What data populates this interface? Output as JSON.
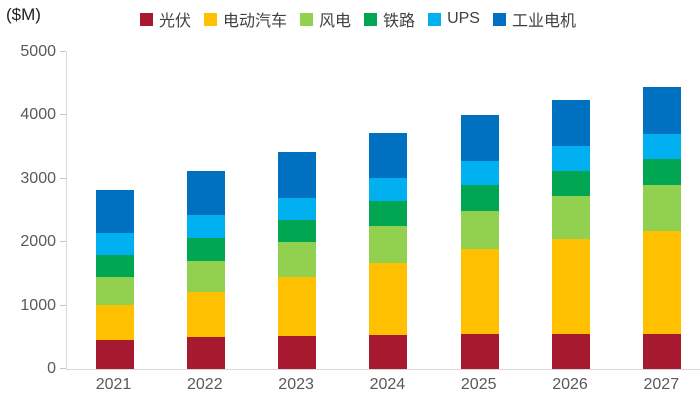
{
  "chart_data": {
    "type": "bar",
    "stacked": true,
    "title": "",
    "unit_label": "($M)",
    "xlabel": "",
    "ylabel": "",
    "categories": [
      "2021",
      "2022",
      "2023",
      "2024",
      "2025",
      "2026",
      "2027"
    ],
    "series": [
      {
        "name": "光伏",
        "color": "#A6192E",
        "values": [
          450,
          500,
          520,
          540,
          550,
          550,
          550
        ]
      },
      {
        "name": "电动汽车",
        "color": "#FFC000",
        "values": [
          560,
          710,
          930,
          1140,
          1340,
          1500,
          1620
        ]
      },
      {
        "name": "风电",
        "color": "#92D050",
        "values": [
          440,
          490,
          550,
          570,
          610,
          680,
          730
        ]
      },
      {
        "name": "铁路",
        "color": "#00A651",
        "values": [
          350,
          370,
          350,
          400,
          410,
          390,
          410
        ]
      },
      {
        "name": "UPS",
        "color": "#00B0F0",
        "values": [
          340,
          360,
          350,
          360,
          370,
          390,
          390
        ]
      },
      {
        "name": "工业电机",
        "color": "#0070C0",
        "values": [
          690,
          700,
          720,
          720,
          730,
          730,
          750
        ]
      }
    ],
    "totals": [
      2830,
      3130,
      3420,
      3730,
      4010,
      4240,
      4450
    ],
    "ylim": [
      0,
      5000
    ],
    "yticks": [
      0,
      1000,
      2000,
      3000,
      4000,
      5000
    ],
    "legend_position": "top",
    "grid": false
  }
}
